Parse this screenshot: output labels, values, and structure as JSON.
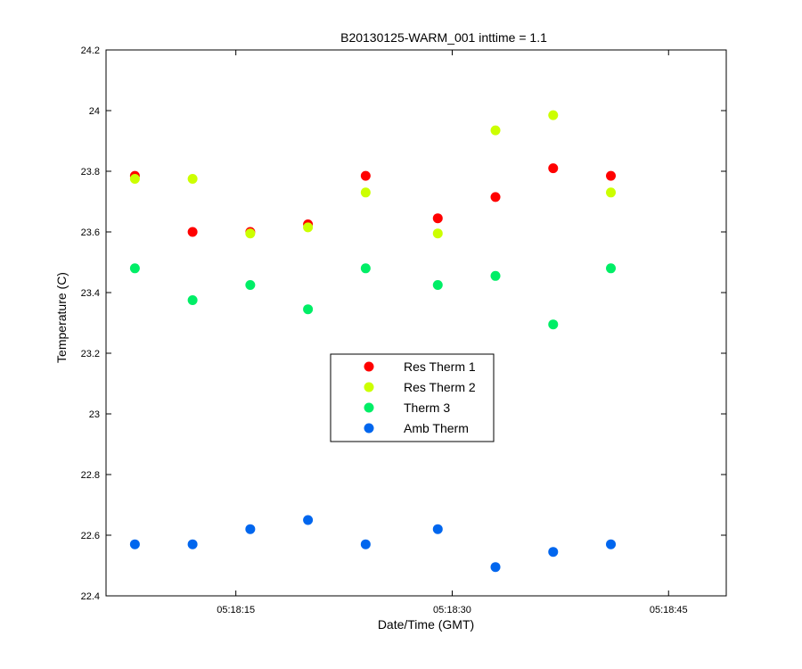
{
  "chart_data": {
    "type": "scatter",
    "title": "B20130125-WARM_001 inttime = 1.1",
    "xlabel": "Date/Time (GMT)",
    "ylabel": "Temperature (C)",
    "xlim": [
      "05:18:06",
      "05:18:49"
    ],
    "ylim": [
      22.4,
      24.2
    ],
    "x_ticks": [
      "05:18:15",
      "05:18:30",
      "05:18:45"
    ],
    "y_ticks": [
      22.4,
      22.6,
      22.8,
      23,
      23.2,
      23.4,
      23.6,
      23.8,
      24,
      24.2
    ],
    "grid": false,
    "legend_position": "center",
    "x": [
      "05:18:08",
      "05:18:12",
      "05:18:16",
      "05:18:20",
      "05:18:24",
      "05:18:29",
      "05:18:33",
      "05:18:37",
      "05:18:41"
    ],
    "series": [
      {
        "name": "Res Therm 1",
        "color": "#ff0000",
        "values": [
          23.785,
          23.6,
          23.6,
          23.625,
          23.785,
          23.645,
          23.715,
          23.81,
          23.785
        ]
      },
      {
        "name": "Res Therm 2",
        "color": "#ccff00",
        "values": [
          23.775,
          23.775,
          23.595,
          23.615,
          23.73,
          23.595,
          23.935,
          23.985,
          23.73
        ]
      },
      {
        "name": "Therm 3",
        "color": "#00ee66",
        "values": [
          23.48,
          23.375,
          23.425,
          23.345,
          23.48,
          23.425,
          23.455,
          23.295,
          23.48
        ]
      },
      {
        "name": "Amb Therm",
        "color": "#0066ee",
        "values": [
          22.57,
          22.57,
          22.62,
          22.65,
          22.57,
          22.62,
          22.495,
          22.545,
          22.57
        ]
      }
    ]
  }
}
